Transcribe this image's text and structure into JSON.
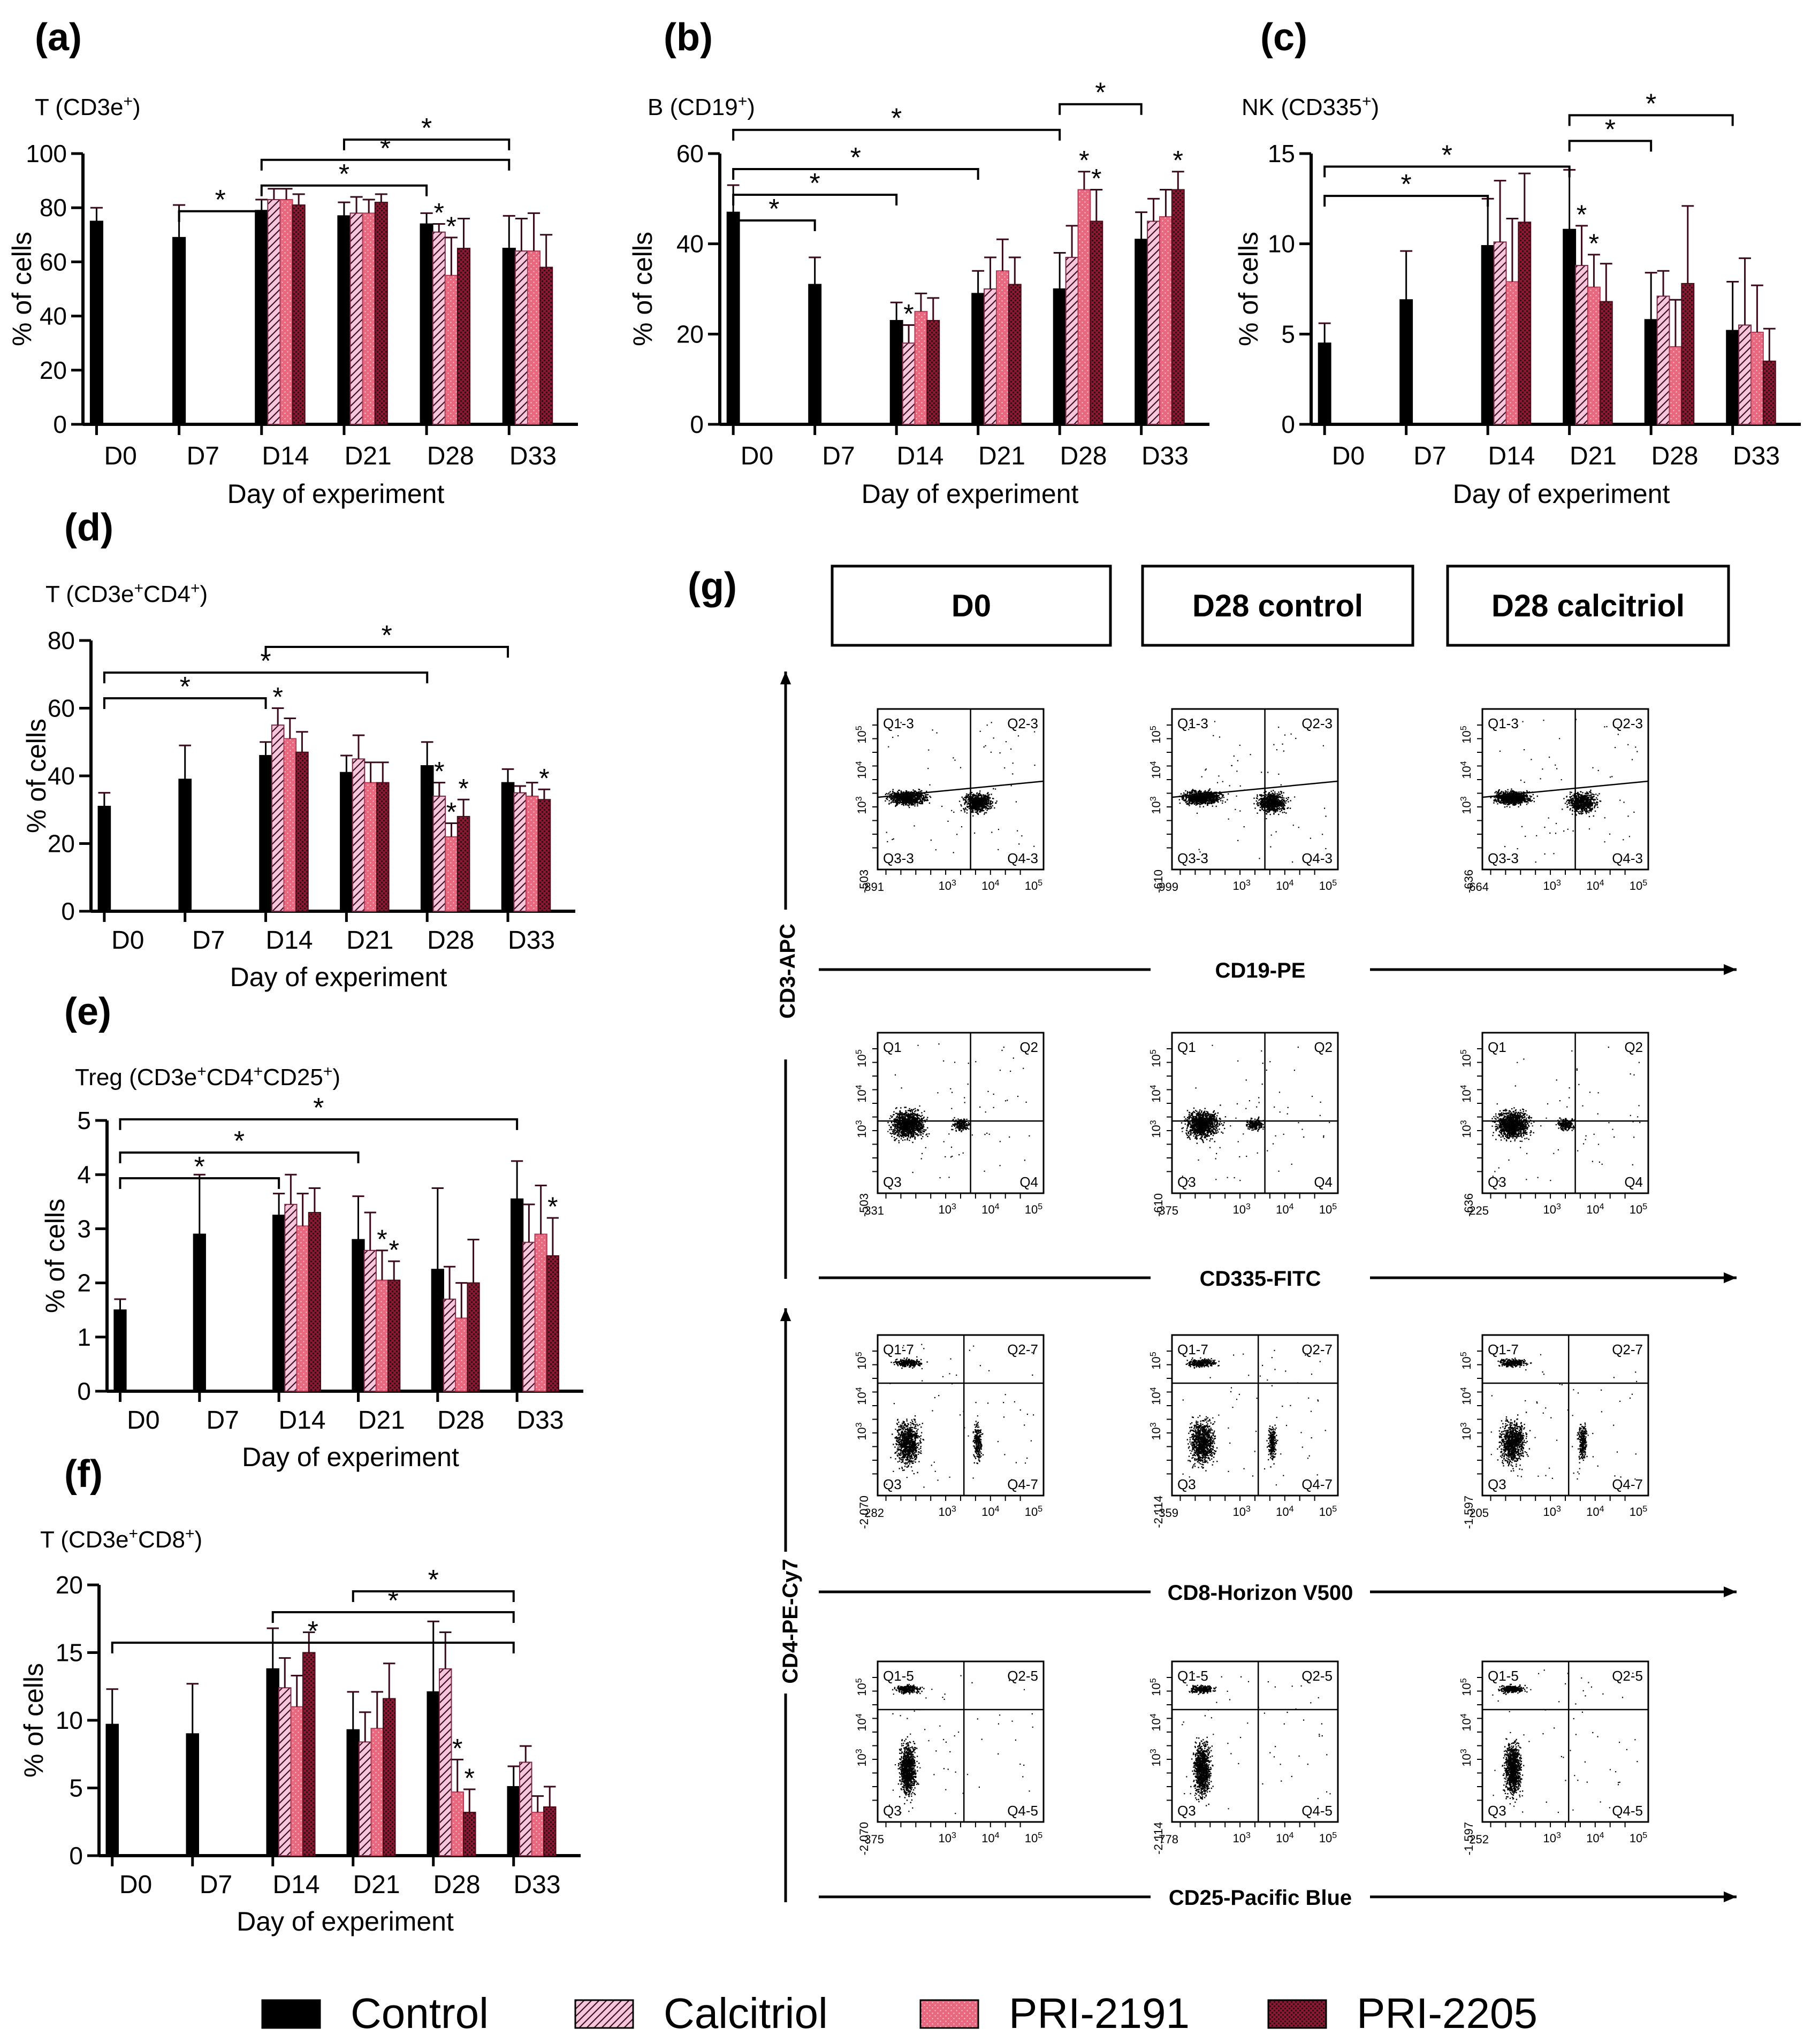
{
  "panel_letters": {
    "a": "(a)",
    "b": "(b)",
    "c": "(c)",
    "d": "(d)",
    "e": "(e)",
    "f": "(f)",
    "g": "(g)"
  },
  "days": [
    "D0",
    "D7",
    "D14",
    "D21",
    "D28",
    "D33"
  ],
  "ylabel": "% of cells",
  "xlabel": "Day of experiment",
  "legend": [
    "Control",
    "Calcitriol",
    "PRI-2191",
    "PRI-2205"
  ],
  "colors": {
    "control": "#000000",
    "calcitriol": "#f4b3d2",
    "pri2191": "#e8687f",
    "pri2205": "#9c1836"
  },
  "chart_data": [
    {
      "type": "bar",
      "panel": "a",
      "title": "T (CD3e+)",
      "xlabel": "Day of experiment",
      "ylabel": "% of cells",
      "ylim": [
        0,
        100
      ],
      "yticks": [
        0,
        20,
        40,
        60,
        80,
        100
      ],
      "categories": [
        "D0",
        "D7",
        "D14",
        "D21",
        "D28",
        "D33"
      ],
      "series": [
        {
          "name": "Control",
          "values": [
            75,
            69,
            79,
            77,
            74,
            65
          ],
          "errors": [
            5,
            12,
            4,
            5,
            4,
            12
          ]
        },
        {
          "name": "Calcitriol",
          "values": [
            null,
            null,
            83,
            78,
            71,
            64
          ],
          "errors": [
            null,
            null,
            4,
            6,
            3,
            12
          ]
        },
        {
          "name": "PRI-2191",
          "values": [
            null,
            null,
            83,
            78,
            55,
            64
          ],
          "errors": [
            null,
            null,
            4,
            5,
            14,
            14
          ]
        },
        {
          "name": "PRI-2205",
          "values": [
            null,
            null,
            81,
            82,
            65,
            58
          ],
          "errors": [
            null,
            null,
            4,
            3,
            11,
            12
          ]
        }
      ]
    },
    {
      "type": "bar",
      "panel": "b",
      "title": "B (CD19+)",
      "xlabel": "Day of experiment",
      "ylabel": "% of cells",
      "ylim": [
        0,
        60
      ],
      "yticks": [
        0,
        20,
        40,
        60
      ],
      "categories": [
        "D0",
        "D7",
        "D14",
        "D21",
        "D28",
        "D33"
      ],
      "series": [
        {
          "name": "Control",
          "values": [
            47,
            31,
            23,
            29,
            30,
            41
          ],
          "errors": [
            6,
            6,
            4,
            5,
            8,
            6
          ]
        },
        {
          "name": "Calcitriol",
          "values": [
            null,
            null,
            18,
            30,
            37,
            45
          ],
          "errors": [
            null,
            null,
            4,
            7,
            7,
            5
          ]
        },
        {
          "name": "PRI-2191",
          "values": [
            null,
            null,
            25,
            34,
            52,
            46
          ],
          "errors": [
            null,
            null,
            4,
            7,
            4,
            6
          ]
        },
        {
          "name": "PRI-2205",
          "values": [
            null,
            null,
            23,
            31,
            45,
            52
          ],
          "errors": [
            null,
            null,
            5,
            6,
            7,
            4
          ]
        }
      ]
    },
    {
      "type": "bar",
      "panel": "c",
      "title": "NK (CD335+)",
      "xlabel": "Day of experiment",
      "ylabel": "% of cells",
      "ylim": [
        0,
        15
      ],
      "yticks": [
        0,
        5,
        10,
        15
      ],
      "categories": [
        "D0",
        "D7",
        "D14",
        "D21",
        "D28",
        "D33"
      ],
      "series": [
        {
          "name": "Control",
          "values": [
            4.5,
            6.9,
            9.9,
            10.8,
            5.8,
            5.2
          ],
          "errors": [
            1.1,
            2.7,
            2.6,
            3.3,
            2.6,
            2.7
          ]
        },
        {
          "name": "Calcitriol",
          "values": [
            null,
            null,
            10.1,
            8.8,
            7.1,
            5.5
          ],
          "errors": [
            null,
            null,
            3.4,
            2.2,
            1.4,
            3.7
          ]
        },
        {
          "name": "PRI-2191",
          "values": [
            null,
            null,
            7.9,
            7.6,
            4.3,
            5.1
          ],
          "errors": [
            null,
            null,
            3.5,
            1.8,
            2.6,
            2.6
          ]
        },
        {
          "name": "PRI-2205",
          "values": [
            null,
            null,
            11.2,
            6.8,
            7.8,
            3.5
          ],
          "errors": [
            null,
            null,
            2.7,
            2.1,
            4.3,
            1.8
          ]
        }
      ]
    },
    {
      "type": "bar",
      "panel": "d",
      "title": "T (CD3e+CD4+)",
      "xlabel": "Day of experiment",
      "ylabel": "% of cells",
      "ylim": [
        0,
        80
      ],
      "yticks": [
        0,
        20,
        40,
        60,
        80
      ],
      "categories": [
        "D0",
        "D7",
        "D14",
        "D21",
        "D28",
        "D33"
      ],
      "series": [
        {
          "name": "Control",
          "values": [
            31,
            39,
            46,
            41,
            43,
            38
          ],
          "errors": [
            4,
            10,
            4,
            5,
            7,
            4
          ]
        },
        {
          "name": "Calcitriol",
          "values": [
            null,
            null,
            55,
            45,
            34,
            35
          ],
          "errors": [
            null,
            null,
            5,
            7,
            4,
            2
          ]
        },
        {
          "name": "PRI-2191",
          "values": [
            null,
            null,
            51,
            38,
            22,
            34
          ],
          "errors": [
            null,
            null,
            6,
            6,
            4,
            4
          ]
        },
        {
          "name": "PRI-2205",
          "values": [
            null,
            null,
            47,
            38,
            28,
            33
          ],
          "errors": [
            null,
            null,
            6,
            6,
            5,
            3
          ]
        }
      ]
    },
    {
      "type": "bar",
      "panel": "e",
      "title": "Treg (CD3e+CD4+CD25+)",
      "xlabel": "Day of experiment",
      "ylabel": "% of cells",
      "ylim": [
        0,
        5
      ],
      "yticks": [
        0,
        1,
        2,
        3,
        4,
        5
      ],
      "categories": [
        "D0",
        "D7",
        "D14",
        "D21",
        "D28",
        "D33"
      ],
      "series": [
        {
          "name": "Control",
          "values": [
            1.5,
            2.9,
            3.25,
            2.8,
            2.25,
            3.55
          ],
          "errors": [
            0.2,
            1.1,
            0.4,
            0.8,
            1.5,
            0.7
          ]
        },
        {
          "name": "Calcitriol",
          "values": [
            null,
            null,
            3.45,
            2.6,
            1.7,
            2.75
          ],
          "errors": [
            null,
            null,
            0.55,
            0.7,
            0.6,
            0.7
          ]
        },
        {
          "name": "PRI-2191",
          "values": [
            null,
            null,
            3.05,
            2.05,
            1.35,
            2.9
          ],
          "errors": [
            null,
            null,
            0.6,
            0.55,
            0.65,
            0.9
          ]
        },
        {
          "name": "PRI-2205",
          "values": [
            null,
            null,
            3.3,
            2.05,
            2.0,
            2.5
          ],
          "errors": [
            null,
            null,
            0.45,
            0.35,
            0.8,
            0.7
          ]
        }
      ]
    },
    {
      "type": "bar",
      "panel": "f",
      "title": "T (CD3e+CD8+)",
      "xlabel": "Day of experiment",
      "ylabel": "% of cells",
      "ylim": [
        0,
        20
      ],
      "yticks": [
        0,
        5,
        10,
        15,
        20
      ],
      "categories": [
        "D0",
        "D7",
        "D14",
        "D21",
        "D28",
        "D33"
      ],
      "series": [
        {
          "name": "Control",
          "values": [
            9.7,
            9.0,
            13.8,
            9.3,
            12.1,
            5.1
          ],
          "errors": [
            2.6,
            3.7,
            3.0,
            2.8,
            5.2,
            1.5
          ]
        },
        {
          "name": "Calcitriol",
          "values": [
            null,
            null,
            12.4,
            8.4,
            13.8,
            6.9
          ],
          "errors": [
            null,
            null,
            2.2,
            2.2,
            2.7,
            1.2
          ]
        },
        {
          "name": "PRI-2191",
          "values": [
            null,
            null,
            11.0,
            9.4,
            4.7,
            3.2
          ],
          "errors": [
            null,
            null,
            2.3,
            2.7,
            2.4,
            1.2
          ]
        },
        {
          "name": "PRI-2205",
          "values": [
            null,
            null,
            15.0,
            11.6,
            3.2,
            3.6
          ],
          "errors": [
            null,
            null,
            1.5,
            2.6,
            1.7,
            1.5
          ]
        }
      ]
    }
  ],
  "titles_rich": {
    "a": [
      [
        "T (CD3e",
        ""
      ],
      [
        "+",
        "sup"
      ],
      [
        ")",
        ""
      ]
    ],
    "b": [
      [
        "B (CD19",
        ""
      ],
      [
        "+",
        "sup"
      ],
      [
        ")",
        ""
      ]
    ],
    "c": [
      [
        "NK (CD335",
        ""
      ],
      [
        "+",
        "sup"
      ],
      [
        ")",
        ""
      ]
    ],
    "d": [
      [
        "T (CD3e",
        ""
      ],
      [
        "+",
        "sup"
      ],
      [
        "CD4",
        ""
      ],
      [
        "+",
        "sup"
      ],
      [
        ")",
        ""
      ]
    ],
    "e": [
      [
        "Treg (CD3e",
        ""
      ],
      [
        "+",
        "sup"
      ],
      [
        "CD4",
        ""
      ],
      [
        "+",
        "sup"
      ],
      [
        "CD25",
        ""
      ],
      [
        "+",
        "sup"
      ],
      [
        ")",
        ""
      ]
    ],
    "f": [
      [
        "T (CD3e",
        ""
      ],
      [
        "+",
        "sup"
      ],
      [
        "CD8",
        ""
      ],
      [
        "+",
        "sup"
      ],
      [
        ")",
        ""
      ]
    ]
  },
  "significance": {
    "star": "*",
    "a": {
      "brackets": [
        [
          1,
          2
        ],
        [
          2,
          4
        ],
        [
          2,
          5
        ],
        [
          3,
          5
        ]
      ],
      "groups": [
        [
          4,
          1
        ],
        [
          4,
          2
        ]
      ]
    },
    "b": {
      "brackets": [
        [
          0,
          1
        ],
        [
          0,
          2
        ],
        [
          0,
          3
        ],
        [
          0,
          4
        ],
        [
          4,
          5
        ]
      ],
      "groups": [
        [
          2,
          1
        ],
        [
          4,
          2
        ],
        [
          4,
          3
        ],
        [
          5,
          3
        ]
      ]
    },
    "c": {
      "brackets": [
        [
          0,
          2
        ],
        [
          0,
          3
        ],
        [
          3,
          4
        ],
        [
          3,
          5
        ]
      ],
      "groups": [
        [
          3,
          1
        ],
        [
          3,
          2
        ]
      ]
    },
    "d": {
      "brackets": [
        [
          0,
          2
        ],
        [
          0,
          4
        ],
        [
          2,
          5
        ]
      ],
      "groups": [
        [
          2,
          1
        ],
        [
          4,
          1
        ],
        [
          4,
          2
        ],
        [
          4,
          3
        ],
        [
          5,
          3
        ]
      ]
    },
    "e": {
      "brackets": [
        [
          0,
          2
        ],
        [
          0,
          3
        ],
        [
          0,
          5
        ]
      ],
      "groups": [
        [
          3,
          2
        ],
        [
          3,
          3
        ],
        [
          5,
          3
        ]
      ]
    },
    "f": {
      "brackets": [
        [
          0,
          5
        ],
        [
          2,
          5
        ],
        [
          3,
          5
        ]
      ],
      "groups": [
        [
          4,
          2
        ],
        [
          4,
          3
        ]
      ]
    }
  },
  "flow": {
    "headers": [
      "D0",
      "D28 control",
      "D28 calcitriol"
    ],
    "axis_labels": {
      "cd3": "CD3-APC",
      "cd4": "CD4-PE-Cy7",
      "row1": "CD19-PE",
      "row2": "CD335-FITC",
      "row3": "CD8-Horizon V500",
      "row4": "CD25-Pacific Blue"
    },
    "exponents": [
      "3",
      "4",
      "5"
    ],
    "rows": [
      {
        "quadrants": [
          "Q1-3",
          "Q2-3",
          "Q3-3",
          "Q4-3"
        ],
        "ymins": [
          "-503",
          "-610",
          "-636"
        ],
        "xmins": [
          "-891",
          "-999",
          "-664"
        ]
      },
      {
        "quadrants": [
          "Q1",
          "Q2",
          "Q3",
          "Q4"
        ],
        "ymins": [
          "-503",
          "-610",
          "-636"
        ],
        "xmins": [
          "-331",
          "-375",
          "-225"
        ]
      },
      {
        "quadrants": [
          "Q1-7",
          "Q2-7",
          "Q3",
          "Q4-7"
        ],
        "ymins": [
          "-2,070",
          "-2,114",
          "-1,597"
        ],
        "xmins": [
          "-282",
          "-359",
          "-205"
        ]
      },
      {
        "quadrants": [
          "Q1-5",
          "Q2-5",
          "Q3",
          "Q4-5"
        ],
        "ymins": [
          "-2,070",
          "-2,114",
          "-1,597"
        ],
        "xmins": [
          "-375",
          "-778",
          "-252"
        ]
      }
    ]
  }
}
